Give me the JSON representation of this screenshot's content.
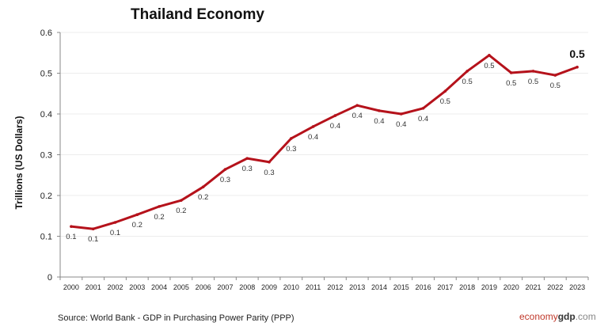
{
  "chart_data": {
    "type": "line",
    "title": "Thailand Economy",
    "xlabel": "",
    "ylabel": "Trillions (US Dollars)",
    "ylim": [
      0,
      0.6
    ],
    "yticks": [
      "0",
      "0.1",
      "0.2",
      "0.3",
      "0.4",
      "0.5",
      "0.6"
    ],
    "grid": true,
    "line_color": "#b5121b",
    "categories": [
      "2000",
      "2001",
      "2002",
      "2003",
      "2004",
      "2005",
      "2006",
      "2007",
      "2008",
      "2009",
      "2010",
      "2011",
      "2012",
      "2013",
      "2014",
      "2015",
      "2016",
      "2017",
      "2018",
      "2019",
      "2020",
      "2021",
      "2022",
      "2023"
    ],
    "values": [
      0.124,
      0.118,
      0.134,
      0.153,
      0.173,
      0.188,
      0.221,
      0.264,
      0.291,
      0.282,
      0.34,
      0.369,
      0.396,
      0.421,
      0.408,
      0.4,
      0.414,
      0.456,
      0.505,
      0.544,
      0.501,
      0.505,
      0.495,
      0.515
    ],
    "data_labels": [
      "0.1",
      "0.1",
      "0.1",
      "0.2",
      "0.2",
      "0.2",
      "0.2",
      "0.3",
      "0.3",
      "0.3",
      "0.3",
      "0.4",
      "0.4",
      "0.4",
      "0.4",
      "0.4",
      "0.4",
      "0.5",
      "0.5",
      "0.5",
      "0.5",
      "0.5",
      "0.5",
      "0.5"
    ]
  },
  "footer": {
    "source": "Source:  World Bank -  GDP  in Purchasing Power Parity (PPP)",
    "logo_part1": "economy",
    "logo_part2": "gdp",
    "logo_part3": ".com"
  }
}
